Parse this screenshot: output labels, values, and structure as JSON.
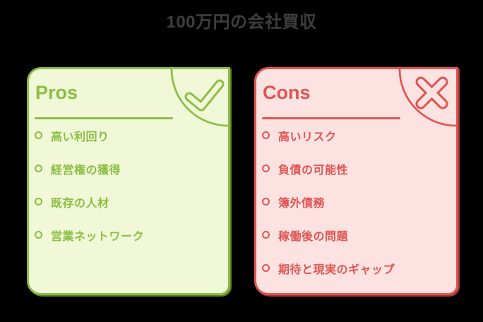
{
  "title": "100万円の会社買収",
  "colors": {
    "background": "#000000",
    "title_text": "#3e3e3e",
    "pros_accent": "#8cbd44",
    "pros_fill": "#f0f8d7",
    "cons_accent": "#e05551",
    "cons_fill": "#fce3e2"
  },
  "pros": {
    "label": "Pros",
    "icon": "check-icon",
    "items": [
      "高い利回り",
      "経営権の獲得",
      "既存の人材",
      "営業ネットワーク"
    ]
  },
  "cons": {
    "label": "Cons",
    "icon": "x-icon",
    "items": [
      "高いリスク",
      "負債の可能性",
      "簿外債務",
      "稼働後の問題",
      "期待と現実のギャップ"
    ]
  }
}
